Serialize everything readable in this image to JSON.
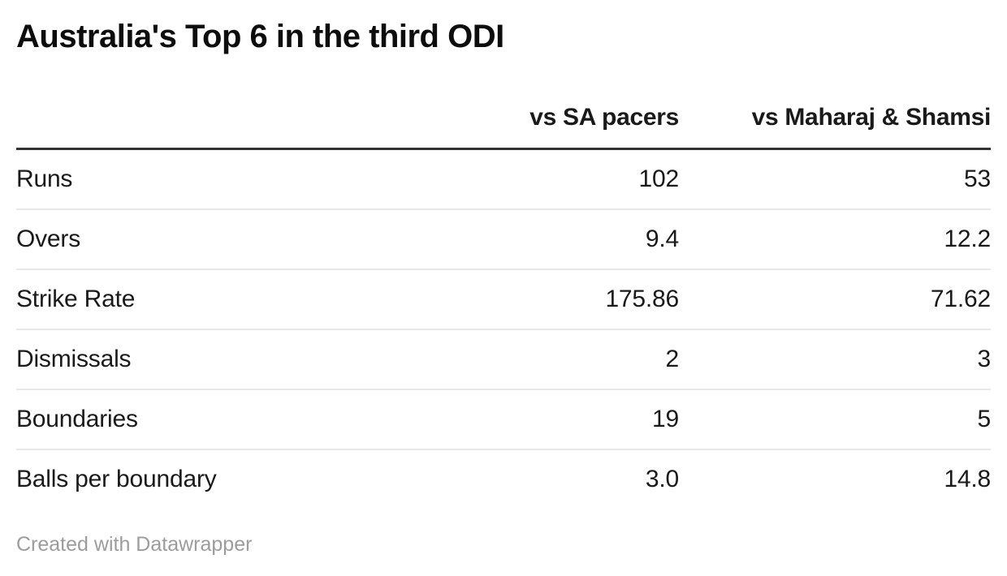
{
  "title": "Australia's Top 6 in the third ODI",
  "table": {
    "columns": {
      "rowLabel": "",
      "col1": "vs SA pacers",
      "col2": "vs Maharaj & Shamsi"
    },
    "rows": [
      {
        "label": "Runs",
        "col1": "102",
        "col2": "53"
      },
      {
        "label": "Overs",
        "col1": "9.4",
        "col2": "12.2"
      },
      {
        "label": "Strike Rate",
        "col1": "175.86",
        "col2": "71.62"
      },
      {
        "label": "Dismissals",
        "col1": "2",
        "col2": "3"
      },
      {
        "label": "Boundaries",
        "col1": "19",
        "col2": "5"
      },
      {
        "label": "Balls per boundary",
        "col1": "3.0",
        "col2": "14.8"
      }
    ]
  },
  "footer": {
    "attribution": "Created with Datawrapper"
  },
  "colors": {
    "background": "#ffffff",
    "title": "#0d0d0d",
    "text": "#1a1a1a",
    "header_rule": "#333333",
    "row_rule": "#e8e8e8",
    "attribution": "#9c9c9c"
  },
  "chart_data": {
    "type": "table",
    "title": "Australia's Top 6 in the third ODI",
    "categories": [
      "Runs",
      "Overs",
      "Strike Rate",
      "Dismissals",
      "Boundaries",
      "Balls per boundary"
    ],
    "series": [
      {
        "name": "vs SA pacers",
        "values": [
          102,
          9.4,
          175.86,
          2,
          19,
          3.0
        ]
      },
      {
        "name": "vs Maharaj & Shamsi",
        "values": [
          53,
          12.2,
          71.62,
          3,
          5,
          14.8
        ]
      }
    ],
    "legend_position": "none",
    "grid": "horizontal-row-rules",
    "attribution": "Created with Datawrapper"
  }
}
